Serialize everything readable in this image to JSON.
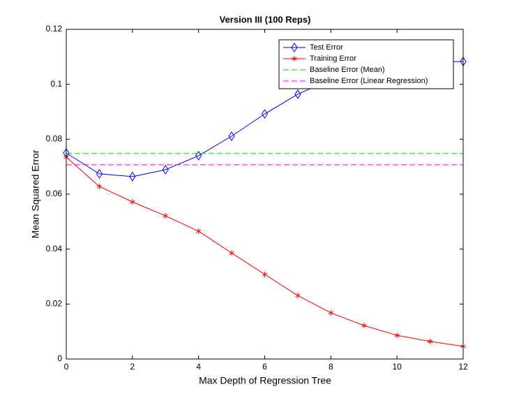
{
  "chart_data": {
    "type": "line",
    "title": "Version III (100 Reps)",
    "xlabel": "Max Depth of Regression Tree",
    "ylabel": "Mean Squared Error",
    "x": [
      0,
      1,
      2,
      3,
      4,
      5,
      6,
      7,
      8,
      9,
      10,
      11,
      12
    ],
    "xlim": [
      0,
      12
    ],
    "xticks": [
      0,
      2,
      4,
      6,
      8,
      10,
      12
    ],
    "ylim": [
      0,
      0.12
    ],
    "yticks": [
      0,
      0.02,
      0.04,
      0.06,
      0.08,
      0.1,
      0.12
    ],
    "legend": "upper right",
    "series": [
      {
        "name": "Test Error",
        "color": "#0000ff",
        "marker": "diamond",
        "dash": false,
        "values": [
          0.075,
          0.0674,
          0.0664,
          0.0689,
          0.074,
          0.0811,
          0.0892,
          0.0964,
          0.1017,
          0.105,
          0.107,
          0.108,
          0.1083
        ]
      },
      {
        "name": "Training Error",
        "color": "#ff0000",
        "marker": "asterisk",
        "dash": false,
        "values": [
          0.0735,
          0.0628,
          0.0572,
          0.0521,
          0.0465,
          0.0386,
          0.0308,
          0.0231,
          0.0168,
          0.0122,
          0.0086,
          0.0064,
          0.0046
        ]
      },
      {
        "name": "Baseline Error (Mean)",
        "color": "#00dd00",
        "marker": "none",
        "dash": true,
        "values": [
          0.0748,
          0.0748,
          0.0748,
          0.0748,
          0.0748,
          0.0748,
          0.0748,
          0.0748,
          0.0748,
          0.0748,
          0.0748,
          0.0748,
          0.0748
        ]
      },
      {
        "name": "Baseline Error (Linear Regression)",
        "color": "#ff00ff",
        "marker": "none",
        "dash": true,
        "values": [
          0.0707,
          0.0707,
          0.0707,
          0.0707,
          0.0707,
          0.0707,
          0.0707,
          0.0707,
          0.0707,
          0.0707,
          0.0707,
          0.0707,
          0.0707
        ]
      }
    ]
  }
}
